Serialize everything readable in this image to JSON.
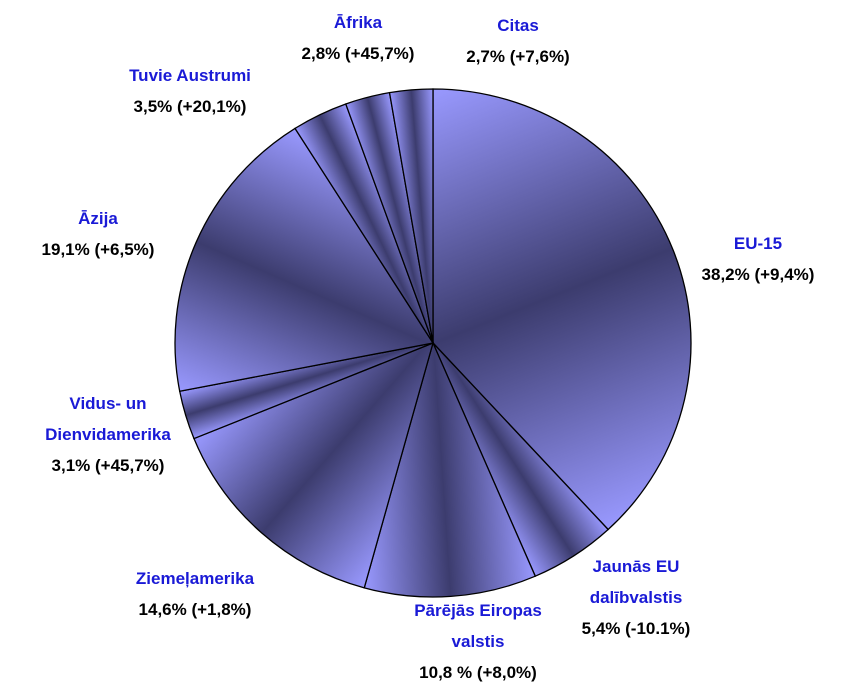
{
  "chart_data": {
    "type": "pie",
    "categories": [
      "EU-15",
      "Jaunās EU dalībvalstis",
      "Pārējās Eiropas valstis",
      "Ziemeļamerika",
      "Vidus- un Dienvidamerika",
      "Āzija",
      "Tuvie Austrumi",
      "Āfrika",
      "Citas"
    ],
    "values": [
      38.2,
      5.4,
      10.8,
      14.6,
      3.1,
      19.1,
      3.5,
      2.8,
      2.7
    ],
    "value_labels": [
      "38,2% (+9,4%)",
      "5,4% (-10.1%)",
      "10,8 % (+8,0%)",
      "14,6% (+1,8%)",
      "3,1% (+45,7%)",
      "19,1% (+6,5%)",
      "3,5% (+20,1%)",
      "2,8% (+45,7%)",
      "2,7% (+7,6%)"
    ],
    "color": "#9999ff"
  }
}
